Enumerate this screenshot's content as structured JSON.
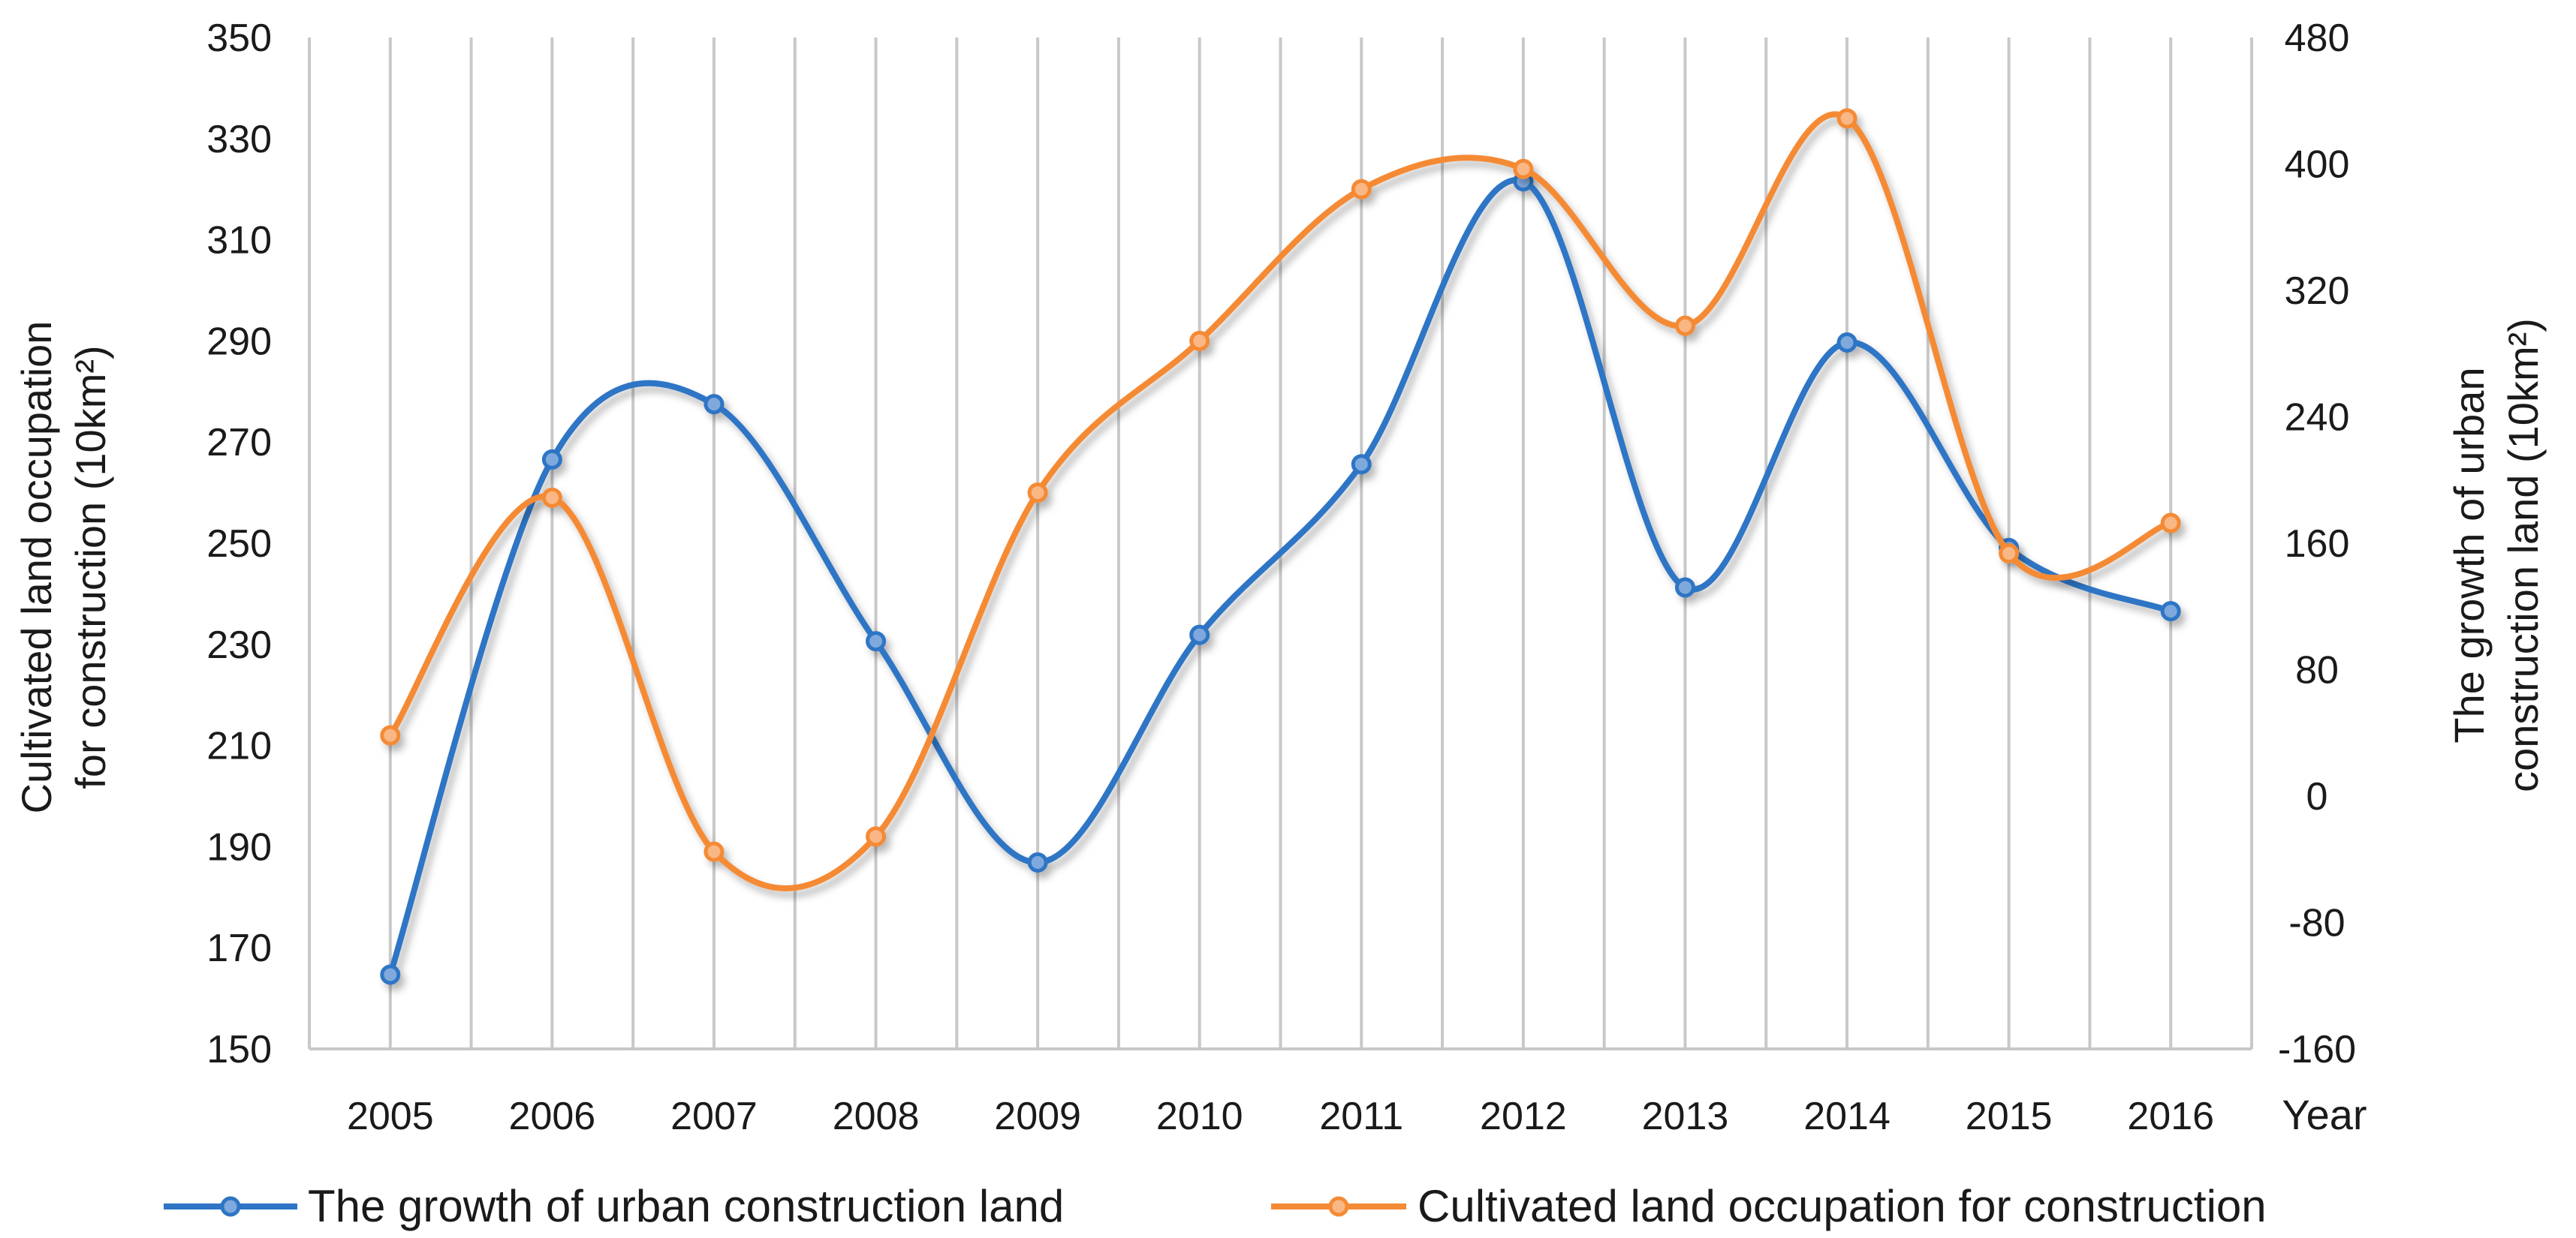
{
  "chart_data": {
    "type": "line",
    "title": "",
    "categories": [
      "2005",
      "2006",
      "2007",
      "2008",
      "2009",
      "2010",
      "2011",
      "2012",
      "2013",
      "2014",
      "2015",
      "2016"
    ],
    "xlabel": "Year",
    "ylabel_left": [
      "Cultivated land occupation",
      "for construction (10km²)"
    ],
    "ylabel_right": [
      "The growth of urban",
      "construction land (10km²)"
    ],
    "ylim_left": [
      150,
      350
    ],
    "yticks_left": [
      "150",
      "170",
      "190",
      "210",
      "230",
      "250",
      "270",
      "290",
      "310",
      "330",
      "350"
    ],
    "ylim_right": [
      -160,
      480
    ],
    "yticks_right": [
      "-160",
      "-80",
      "0",
      "80",
      "160",
      "240",
      "320",
      "400",
      "480"
    ],
    "smooth": true,
    "grid": "vertical",
    "legend_position": "bottom",
    "series": [
      {
        "name": "The growth of urban construction land",
        "axis": "right",
        "color": "#2E75C5",
        "values": [
          -113,
          213,
          248,
          98,
          -42,
          102,
          210,
          389,
          132,
          287,
          157,
          117
        ]
      },
      {
        "name": "Cultivated land occupation for construction",
        "axis": "left",
        "color": "#F58A35",
        "values": [
          212,
          259,
          189,
          192,
          260,
          290,
          320,
          324,
          293,
          334,
          248,
          254
        ]
      }
    ]
  }
}
